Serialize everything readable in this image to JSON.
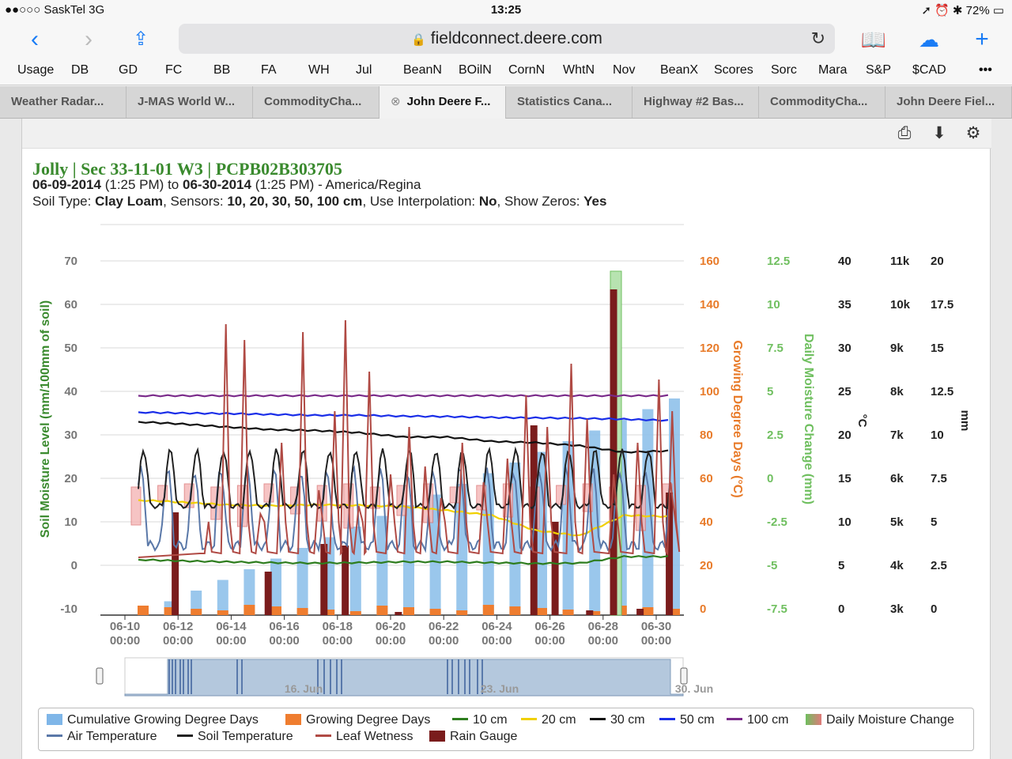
{
  "status_bar": {
    "carrier": "●●○○○ SaskTel  3G",
    "time": "13:25",
    "battery": "➚ ⏰ ✱ 72% ▭"
  },
  "browser": {
    "url": "fieldconnect.deere.com",
    "bookmarks": [
      "Usage",
      "DB",
      "GD",
      "FC",
      "BB",
      "FA",
      "WH",
      "Jul",
      "BeanN",
      "BOilN",
      "CornN",
      "WhtN",
      "Nov",
      "BeanX",
      "Scores",
      "Sorc",
      "Mara",
      "S&P",
      "$CAD"
    ],
    "more": "•••",
    "tabs": [
      "Weather Radar...",
      "J-MAS World W...",
      "CommodityCha...",
      "John Deere F...",
      "Statistics Cana...",
      "Highway #2 Bas...",
      "CommodityCha...",
      "John Deere Fiel..."
    ],
    "active_tab": 3
  },
  "report": {
    "title": "Jolly | Sec 33-11-01 W3 | PCPB02B303705",
    "date_from": "06-09-2014",
    "time_from": "(1:25 PM)",
    "to_word": "to",
    "date_to": "06-30-2014",
    "time_to": "(1:25 PM)",
    "timezone": "- America/Regina",
    "soil_type_label": "Soil Type:",
    "soil_type": "Clay Loam",
    "sensors_label": ", Sensors:",
    "sensors": "10, 20, 30, 50, 100 cm",
    "interp_label": ", Use Interpolation:",
    "interp": "No",
    "zeros_label": ", Show Zeros:",
    "zeros": "Yes"
  },
  "chart_data": {
    "type": "line",
    "x_ticks": [
      [
        "06-10",
        "00:00"
      ],
      [
        "06-12",
        "00:00"
      ],
      [
        "06-14",
        "00:00"
      ],
      [
        "06-16",
        "00:00"
      ],
      [
        "06-18",
        "00:00"
      ],
      [
        "06-20",
        "00:00"
      ],
      [
        "06-22",
        "00:00"
      ],
      [
        "06-24",
        "00:00"
      ],
      [
        "06-26",
        "00:00"
      ],
      [
        "06-28",
        "00:00"
      ],
      [
        "06-30",
        "00:00"
      ]
    ],
    "axes": {
      "soil_moisture": {
        "label": "Soil Moisture Level (mm/100mm of soil)",
        "ticks": [
          "70",
          "60",
          "50",
          "40",
          "30",
          "20",
          "10",
          "0",
          "-10"
        ],
        "color": "#3a8a2e"
      },
      "gdd": {
        "label": "Growing Degree Days (°C)",
        "ticks": [
          "160",
          "140",
          "120",
          "100",
          "80",
          "60",
          "40",
          "20",
          "0"
        ],
        "color": "#e87b2a"
      },
      "daily_change": {
        "label": "Daily Moisture Change (mm)",
        "ticks": [
          "12.5",
          "10",
          "7.5",
          "5",
          "2.5",
          "0",
          "-2.5",
          "-5",
          "-7.5"
        ],
        "color": "#6fbf5f"
      },
      "temp": {
        "label": "°C",
        "ticks": [
          "40",
          "35",
          "30",
          "25",
          "20",
          "15",
          "10",
          "5",
          "0"
        ]
      },
      "leaf": {
        "ticks": [
          "11k",
          "10k",
          "9k",
          "8k",
          "7k",
          "6k",
          "5k",
          "4k",
          "3k"
        ]
      },
      "rain": {
        "label": "mm",
        "ticks": [
          "20",
          "17.5",
          "15",
          "12.5",
          "10",
          "7.5",
          "5",
          "2.5",
          "0"
        ]
      }
    },
    "navigator_labels": [
      "16. Jun",
      "23. Jun",
      "30. Jun"
    ],
    "series": [
      {
        "name": "10 cm",
        "color": "#2e7d1e",
        "values": [
          1.3,
          1.0,
          0.8,
          0.6,
          0.5,
          0.6,
          0.8,
          0.8,
          0.6,
          0.4,
          0.5,
          2.0,
          2.0
        ]
      },
      {
        "name": "20 cm",
        "color": "#f0d000",
        "values": [
          15.0,
          14.5,
          13.9,
          13.7,
          13.9,
          13.8,
          13.5,
          12.6,
          11.5,
          8.0,
          6.8,
          11.5,
          11.2
        ]
      },
      {
        "name": "30 cm",
        "color": "#111111",
        "values": [
          33.0,
          32.5,
          31.8,
          31.2,
          31.0,
          30.5,
          29.5,
          29.5,
          28.5,
          28.2,
          27.5,
          26.0,
          26.3
        ]
      },
      {
        "name": "50 cm",
        "color": "#1a2ee8",
        "values": [
          35.2,
          35.0,
          34.9,
          34.7,
          34.5,
          34.5,
          34.3,
          34.2,
          34.0,
          33.9,
          33.8,
          33.6,
          33.3
        ]
      },
      {
        "name": "100 cm",
        "color": "#7a2a8a",
        "values": [
          39.0,
          39.0,
          39.0,
          39.0,
          39.0,
          39.0,
          39.0,
          39.0,
          39.0,
          39.0,
          39.0,
          39.0,
          39.0
        ]
      }
    ],
    "legend": [
      {
        "name": "Cumulative Growing Degree Days",
        "kind": "box",
        "color": "#7fb6e8"
      },
      {
        "name": "Growing Degree Days",
        "kind": "box",
        "color": "#ef7d2f"
      },
      {
        "name": "10 cm",
        "kind": "line",
        "color": "#2e7d1e"
      },
      {
        "name": "20 cm",
        "kind": "line",
        "color": "#f0d000"
      },
      {
        "name": "30 cm",
        "kind": "line",
        "color": "#111111"
      },
      {
        "name": "50 cm",
        "kind": "line",
        "color": "#1a2ee8"
      },
      {
        "name": "100 cm",
        "kind": "line",
        "color": "#7a2a8a"
      },
      {
        "name": "Daily Moisture Change",
        "kind": "grad",
        "color": "#6fbf5f"
      },
      {
        "name": "Air Temperature",
        "kind": "line",
        "color": "#5a78a8"
      },
      {
        "name": "Soil Temperature",
        "kind": "line",
        "color": "#222222"
      },
      {
        "name": "Leaf Wetness",
        "kind": "line",
        "color": "#b04a44"
      },
      {
        "name": "Rain Gauge",
        "kind": "box",
        "color": "#7a1c1c"
      }
    ]
  }
}
